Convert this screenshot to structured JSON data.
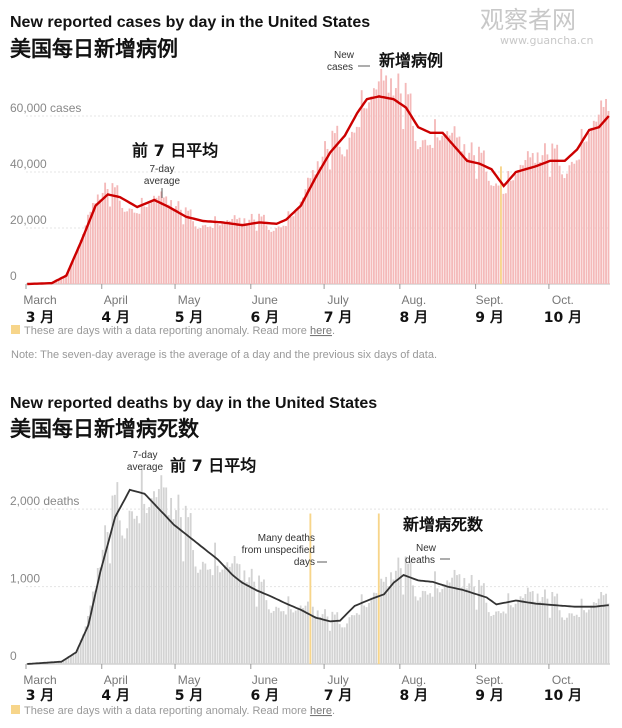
{
  "watermark": {
    "cn": "观察者网",
    "url": "www.guancha.cn"
  },
  "anomaly_color": "#f7d58a",
  "chart_data": [
    {
      "type": "bar",
      "title": "New reported cases by day in the United States",
      "subtitle_cn": "美国每日新增病例",
      "y_max": 70000,
      "y_ticks": [
        {
          "value": 0,
          "label": "0"
        },
        {
          "value": 20000,
          "label": "20,000"
        },
        {
          "value": 40000,
          "label": "40,000"
        },
        {
          "value": 60000,
          "label": "60,000 cases"
        }
      ],
      "x_ticks": [
        {
          "day": 0,
          "label": "March",
          "cn": "3 月"
        },
        {
          "day": 31,
          "label": "April",
          "cn": "4 月"
        },
        {
          "day": 61,
          "label": "May",
          "cn": "5 月"
        },
        {
          "day": 92,
          "label": "June",
          "cn": "6 月"
        },
        {
          "day": 122,
          "label": "July",
          "cn": "7 月"
        },
        {
          "day": 153,
          "label": "Aug.",
          "cn": "8 月"
        },
        {
          "day": 184,
          "label": "Sept.",
          "cn": "9 月"
        },
        {
          "day": 214,
          "label": "Oct.",
          "cn": "10 月"
        }
      ],
      "bar_color": "#f4b9b9",
      "line_color": "#cc0000",
      "anomaly_days": [
        194
      ],
      "avg_anchors": [
        [
          0,
          0
        ],
        [
          10,
          300
        ],
        [
          16,
          3000
        ],
        [
          22,
          15000
        ],
        [
          28,
          28000
        ],
        [
          33,
          32000
        ],
        [
          38,
          31000
        ],
        [
          45,
          27500
        ],
        [
          52,
          30000
        ],
        [
          58,
          27500
        ],
        [
          65,
          24000
        ],
        [
          72,
          22500
        ],
        [
          80,
          22000
        ],
        [
          88,
          21000
        ],
        [
          95,
          22000
        ],
        [
          102,
          21500
        ],
        [
          106,
          23000
        ],
        [
          112,
          28000
        ],
        [
          118,
          38000
        ],
        [
          124,
          47000
        ],
        [
          130,
          53000
        ],
        [
          135,
          61000
        ],
        [
          139,
          66000
        ],
        [
          144,
          67000
        ],
        [
          150,
          66000
        ],
        [
          155,
          63000
        ],
        [
          160,
          56000
        ],
        [
          165,
          54000
        ],
        [
          170,
          54000
        ],
        [
          175,
          49000
        ],
        [
          180,
          44000
        ],
        [
          185,
          43000
        ],
        [
          190,
          41000
        ],
        [
          195,
          35000
        ],
        [
          200,
          40000
        ],
        [
          208,
          42000
        ],
        [
          214,
          44000
        ],
        [
          220,
          44000
        ],
        [
          225,
          48000
        ],
        [
          230,
          55000
        ],
        [
          234,
          56000
        ],
        [
          238,
          60000
        ]
      ],
      "bar_noise": [
        0.02,
        -0.06,
        0.09,
        -0.11,
        0.05,
        0.14,
        -0.03,
        0.07,
        -0.09,
        0.12,
        -0.14,
        0.04,
        0.1,
        -0.05,
        0.16,
        -0.08,
        0.03,
        -0.12,
        0.08,
        0.13,
        -0.02,
        0.06,
        -0.1,
        0.11,
        -0.07,
        0.15,
        -0.04,
        0.01,
        -0.13,
        0.09
      ],
      "annotations": [
        {
          "text_cn": "前 7 日平均",
          "text": [
            "7-day",
            "average"
          ],
          "day": 48
        },
        {
          "text": [
            "New",
            "cases"
          ],
          "text_cn": "新增病例",
          "day": 138
        }
      ],
      "legend": "These are days with a data reporting anomaly. Read more",
      "legend_link": "here",
      "note": "Note: The seven-day average is the average of a day and the previous six days of data."
    },
    {
      "type": "bar",
      "title": "New reported deaths by day in the United States",
      "subtitle_cn": "美国每日新增病死数",
      "y_max": 2700,
      "y_ticks": [
        {
          "value": 0,
          "label": "0"
        },
        {
          "value": 1000,
          "label": "1,000"
        },
        {
          "value": 2000,
          "label": "2,000 deaths"
        }
      ],
      "x_ticks": [
        {
          "day": 0,
          "label": "March",
          "cn": "3 月"
        },
        {
          "day": 31,
          "label": "April",
          "cn": "4 月"
        },
        {
          "day": 61,
          "label": "May",
          "cn": "5 月"
        },
        {
          "day": 92,
          "label": "June",
          "cn": "6 月"
        },
        {
          "day": 122,
          "label": "July",
          "cn": "7 月"
        },
        {
          "day": 153,
          "label": "Aug.",
          "cn": "8 月"
        },
        {
          "day": 184,
          "label": "Sept.",
          "cn": "9 月"
        },
        {
          "day": 214,
          "label": "Oct.",
          "cn": "10 月"
        }
      ],
      "bar_color": "#d3d3d3",
      "line_color": "#333333",
      "anomaly_days": [
        116,
        144
      ],
      "avg_anchors": [
        [
          0,
          0
        ],
        [
          14,
          30
        ],
        [
          20,
          150
        ],
        [
          25,
          500
        ],
        [
          30,
          1200
        ],
        [
          36,
          1900
        ],
        [
          42,
          2250
        ],
        [
          48,
          2200
        ],
        [
          54,
          2000
        ],
        [
          60,
          1800
        ],
        [
          66,
          1650
        ],
        [
          72,
          1500
        ],
        [
          78,
          1350
        ],
        [
          84,
          1150
        ],
        [
          88,
          1050
        ],
        [
          94,
          950
        ],
        [
          100,
          870
        ],
        [
          106,
          780
        ],
        [
          112,
          700
        ],
        [
          118,
          600
        ],
        [
          124,
          550
        ],
        [
          128,
          560
        ],
        [
          134,
          750
        ],
        [
          140,
          830
        ],
        [
          146,
          900
        ],
        [
          150,
          1050
        ],
        [
          154,
          1150
        ],
        [
          160,
          1080
        ],
        [
          166,
          1060
        ],
        [
          172,
          1000
        ],
        [
          178,
          960
        ],
        [
          184,
          900
        ],
        [
          188,
          860
        ],
        [
          192,
          770
        ],
        [
          200,
          820
        ],
        [
          208,
          780
        ],
        [
          216,
          760
        ],
        [
          224,
          740
        ],
        [
          232,
          740
        ],
        [
          238,
          760
        ]
      ],
      "bar_noise": [
        0.04,
        -0.12,
        0.18,
        -0.2,
        0.08,
        0.22,
        -0.06,
        0.12,
        -0.16,
        0.2,
        -0.24,
        0.06,
        0.15,
        -0.1,
        0.25,
        -0.14,
        0.03,
        -0.2,
        0.13,
        0.2,
        -0.05,
        0.1,
        -0.18,
        0.17,
        -0.12,
        0.24,
        -0.08,
        0.02,
        -0.22,
        0.14
      ],
      "annotations": [
        {
          "text": [
            "7-day",
            "average"
          ],
          "text_cn": "前 7 日平均",
          "day": 43
        },
        {
          "text": [
            "Many deaths",
            "from unspecified",
            "days"
          ],
          "day": 116
        },
        {
          "text_cn": "新增病死数",
          "text": [
            "New",
            "deaths"
          ],
          "day": 155
        }
      ],
      "legend": "These are days with a data reporting anomaly. Read more",
      "legend_link": "here"
    }
  ]
}
